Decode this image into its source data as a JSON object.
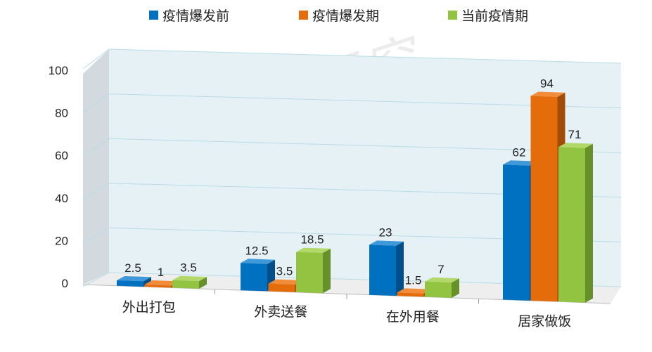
{
  "watermark": "数道研究",
  "colors": {
    "series": [
      "#0070C0",
      "#E46C0A",
      "#92C441"
    ],
    "series_side": [
      "#004f8a",
      "#a24c07",
      "#66902a"
    ],
    "series_top": [
      "#3f98d8",
      "#f08c3a",
      "#b2d86a"
    ],
    "back_wall": "#e6f1f6",
    "side_wall": "#d3dadf",
    "floor": "#eeeeee",
    "grid": "#b7dde6",
    "text": "#222222"
  },
  "chart_data": {
    "type": "bar",
    "title": "",
    "xlabel": "",
    "ylabel": "",
    "categories": [
      "外出打包",
      "外卖送餐",
      "在外用餐",
      "居家做饭"
    ],
    "series": [
      {
        "name": "疫情爆发前",
        "values": [
          2.5,
          12.5,
          23,
          62
        ],
        "labels": [
          "2.5",
          "12.5",
          "23",
          "62"
        ]
      },
      {
        "name": "疫情爆发期",
        "values": [
          1,
          3.5,
          1.5,
          94
        ],
        "labels": [
          "1",
          "3.5",
          "1.5",
          "94"
        ]
      },
      {
        "name": "当前疫情期",
        "values": [
          3.5,
          18.5,
          7,
          71
        ],
        "labels": [
          "3.5",
          "18.5",
          "7",
          "71"
        ]
      }
    ],
    "ylim": [
      0,
      100
    ],
    "yticks": [
      "0",
      "20",
      "40",
      "60",
      "80",
      "100"
    ],
    "legend": "top",
    "grid": true
  }
}
